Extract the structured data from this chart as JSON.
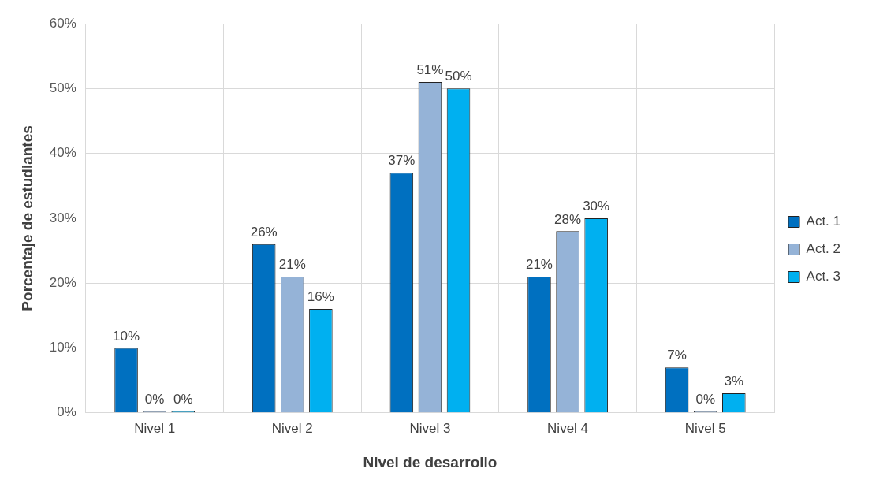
{
  "chart_data": {
    "type": "bar",
    "xlabel": "Nivel de desarrollo",
    "ylabel": "Porcentaje de estudiantes",
    "categories": [
      "Nivel 1",
      "Nivel 2",
      "Nivel 3",
      "Nivel 4",
      "Nivel 5"
    ],
    "series": [
      {
        "name": "Act. 1",
        "color": "#0070c0",
        "values": [
          10,
          26,
          37,
          21,
          7
        ],
        "value_labels": [
          "10%",
          "26%",
          "37%",
          "21%",
          "7%"
        ]
      },
      {
        "name": "Act. 2",
        "color": "#95b3d7",
        "values": [
          0,
          21,
          51,
          28,
          0
        ],
        "value_labels": [
          "0%",
          "21%",
          "51%",
          "28%",
          "0%"
        ]
      },
      {
        "name": "Act. 3",
        "color": "#00b0f0",
        "values": [
          0,
          16,
          50,
          30,
          3
        ],
        "value_labels": [
          "0%",
          "16%",
          "50%",
          "30%",
          "3%"
        ]
      }
    ],
    "ylim": [
      0,
      60
    ],
    "yticks": [
      {
        "value": 0,
        "label": "0%"
      },
      {
        "value": 10,
        "label": "10%"
      },
      {
        "value": 20,
        "label": "20%"
      },
      {
        "value": 30,
        "label": "30%"
      },
      {
        "value": 40,
        "label": "40%"
      },
      {
        "value": 50,
        "label": "50%"
      },
      {
        "value": 60,
        "label": "60%"
      }
    ],
    "grid": true,
    "legend": "right"
  }
}
